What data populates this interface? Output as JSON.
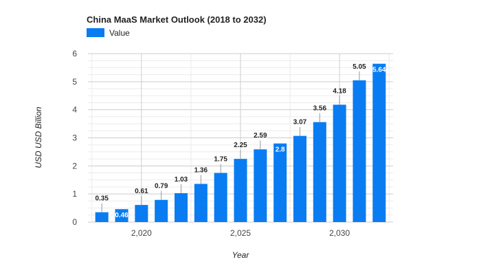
{
  "chart_data": {
    "type": "bar",
    "title": "China MaaS Market Outlook (2018 to 2032)",
    "xlabel": "Year",
    "ylabel": "USD USD Billion",
    "x": [
      2018,
      2019,
      2020,
      2021,
      2022,
      2023,
      2024,
      2025,
      2026,
      2027,
      2028,
      2029,
      2030,
      2031,
      2032
    ],
    "series": [
      {
        "name": "Value",
        "color": "#0a7cf2",
        "values": [
          0.35,
          0.46,
          0.61,
          0.79,
          1.03,
          1.36,
          1.75,
          2.25,
          2.59,
          2.8,
          3.07,
          3.56,
          4.18,
          5.05,
          5.64
        ]
      }
    ],
    "data_labels": [
      "0.35",
      "0.46",
      "0.61",
      "0.79",
      "1.03",
      "1.36",
      "1.75",
      "2.25",
      "2.59",
      "2.8",
      "3.07",
      "3.56",
      "4.18",
      "5.05",
      "5.64"
    ],
    "inside_label_indices": [
      1,
      9,
      14
    ],
    "xlim": [
      2017.3,
      2032.7
    ],
    "ylim": [
      0,
      6
    ],
    "y_ticks": [
      0,
      1,
      2,
      3,
      4,
      5,
      6
    ],
    "y_tick_labels": [
      "0",
      "1",
      "2",
      "3",
      "4",
      "5",
      "6"
    ],
    "x_ticks": [
      2020,
      2025,
      2030
    ],
    "x_tick_labels": [
      "2,020",
      "2,025",
      "2,030"
    ],
    "grid": true,
    "legend_position": "top-left"
  }
}
